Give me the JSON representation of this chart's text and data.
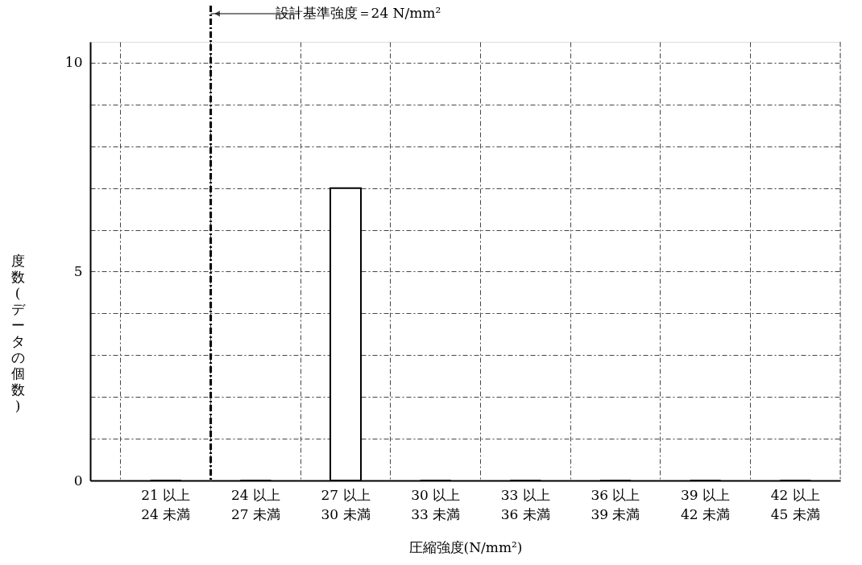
{
  "chart_data": {
    "type": "bar",
    "categories": [
      "21 以上\n24 未満",
      "24 以上\n27 未満",
      "27 以上\n30 未満",
      "30 以上\n33 未満",
      "33 以上\n36 未満",
      "36 以上\n39 未満",
      "39 以上\n42 未満",
      "42 以上\n45 未満"
    ],
    "values": [
      0,
      0,
      7,
      0,
      0,
      0,
      0,
      0
    ],
    "color": "#ffffff",
    "xlabel": "圧縮強度(N/mm²)",
    "ylabel": "度数(データの個数)",
    "ylim": [
      0,
      10.5
    ],
    "yticks": [
      0,
      {
        "value": 1,
        "label": null
      },
      {
        "value": 2,
        "label": null
      },
      {
        "value": 3,
        "label": null
      },
      {
        "value": 4,
        "label": null
      },
      5,
      {
        "value": 6,
        "label": null
      },
      {
        "value": 7,
        "label": null
      },
      {
        "value": 8,
        "label": null
      },
      {
        "value": 9,
        "label": null
      },
      10
    ],
    "grid": true,
    "ref_lines": [
      {
        "axis": "x",
        "value": "21 以上\n24 未満",
        "label": "設計基準強度＝24 N/mm²",
        "color": "#000000",
        "line_style": "dashdot"
      }
    ]
  }
}
